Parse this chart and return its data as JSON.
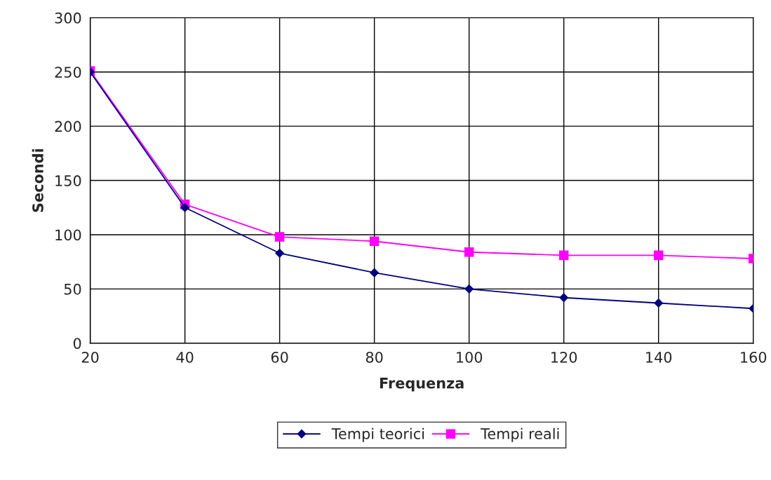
{
  "chart_data": {
    "type": "line",
    "xlabel": "Frequenza",
    "ylabel": "Secondi",
    "x": [
      20,
      40,
      60,
      80,
      100,
      120,
      140,
      160
    ],
    "series": [
      {
        "name": "Tempi teorici",
        "color": "#000080",
        "marker": "diamond",
        "values": [
          250,
          125,
          83,
          65,
          50,
          42,
          37,
          32
        ]
      },
      {
        "name": "Tempi reali",
        "color": "#ff00ff",
        "marker": "square",
        "values": [
          251,
          128,
          98,
          94,
          84,
          81,
          81,
          78
        ]
      }
    ],
    "xlim": [
      20,
      160
    ],
    "xticks": [
      20,
      40,
      60,
      80,
      100,
      120,
      140,
      160
    ],
    "ylim": [
      0,
      300
    ],
    "yticks": [
      0,
      50,
      100,
      150,
      200,
      250,
      300
    ],
    "grid": true,
    "legend": "bottom",
    "line_style": "solid"
  }
}
